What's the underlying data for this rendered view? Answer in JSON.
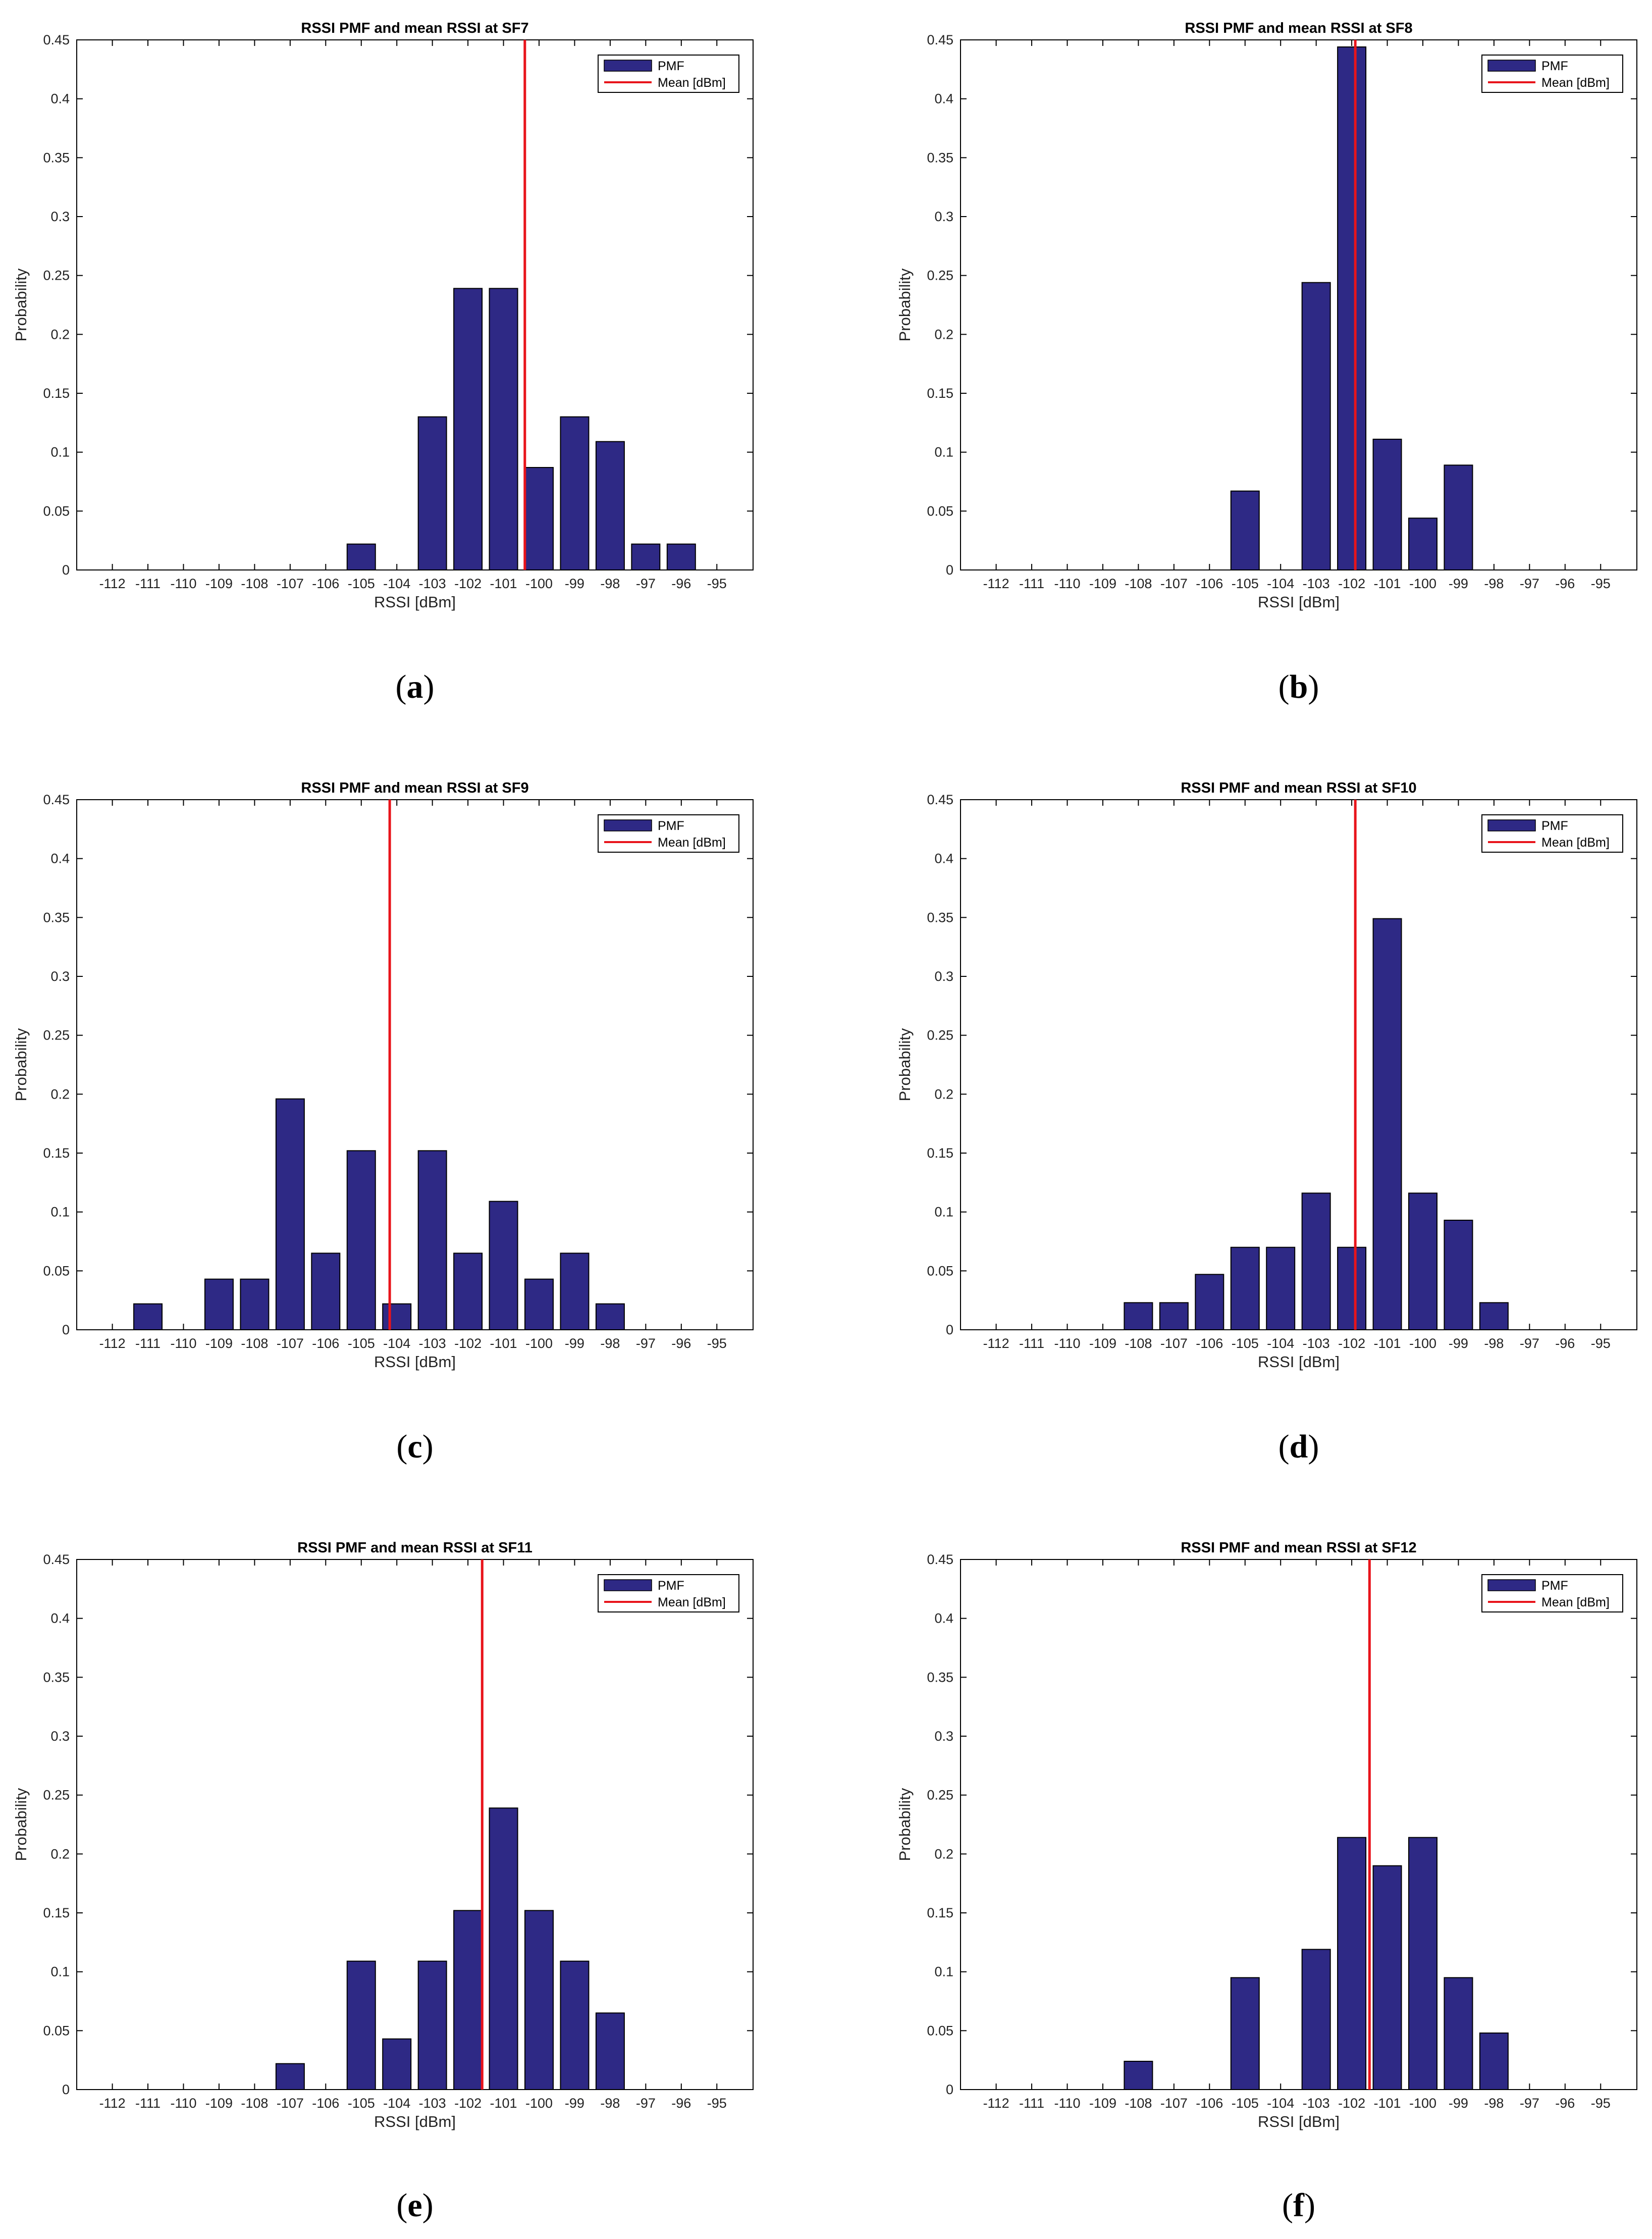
{
  "colors": {
    "bar": "#2e2985",
    "bar_edge": "#000000",
    "mean_line": "#e8141b",
    "axis": "#000000"
  },
  "legend": {
    "pmf_label": "PMF",
    "mean_label": "Mean [dBm]"
  },
  "chart_data": [
    {
      "type": "bar",
      "panel": "a",
      "title": "RSSI PMF and mean RSSI at SF7",
      "xlabel": "RSSI [dBm]",
      "ylabel": "Probability",
      "categories": [
        -112,
        -111,
        -110,
        -109,
        -108,
        -107,
        -106,
        -105,
        -104,
        -103,
        -102,
        -101,
        -100,
        -99,
        -98,
        -97,
        -96,
        -95
      ],
      "values": [
        0,
        0,
        0,
        0,
        0,
        0,
        0,
        0.022,
        0,
        0.13,
        0.239,
        0.239,
        0.087,
        0.13,
        0.109,
        0.022,
        0.022,
        0
      ],
      "mean": -100.4,
      "ylim": [
        0,
        0.45
      ],
      "yticks": [
        "0",
        "0.05",
        "0.1",
        "0.15",
        "0.2",
        "0.25",
        "0.3",
        "0.35",
        "0.4",
        "0.45"
      ],
      "caption": "a"
    },
    {
      "type": "bar",
      "panel": "b",
      "title": "RSSI PMF and mean RSSI at SF8",
      "xlabel": "RSSI [dBm]",
      "ylabel": "Probability",
      "categories": [
        -112,
        -111,
        -110,
        -109,
        -108,
        -107,
        -106,
        -105,
        -104,
        -103,
        -102,
        -101,
        -100,
        -99,
        -98,
        -97,
        -96,
        -95
      ],
      "values": [
        0,
        0,
        0,
        0,
        0,
        0,
        0,
        0.067,
        0,
        0.244,
        0.444,
        0.111,
        0.044,
        0.089,
        0,
        0,
        0,
        0
      ],
      "mean": -101.9,
      "ylim": [
        0,
        0.45
      ],
      "yticks": [
        "0",
        "0.05",
        "0.1",
        "0.15",
        "0.2",
        "0.25",
        "0.3",
        "0.35",
        "0.4",
        "0.45"
      ],
      "caption": "b"
    },
    {
      "type": "bar",
      "panel": "c",
      "title": "RSSI PMF and mean RSSI at SF9",
      "xlabel": "RSSI [dBm]",
      "ylabel": "Probability",
      "categories": [
        -112,
        -111,
        -110,
        -109,
        -108,
        -107,
        -106,
        -105,
        -104,
        -103,
        -102,
        -101,
        -100,
        -99,
        -98,
        -97,
        -96,
        -95
      ],
      "values": [
        0,
        0.022,
        0,
        0.043,
        0.043,
        0.196,
        0.065,
        0.152,
        0.022,
        0.152,
        0.065,
        0.109,
        0.043,
        0.065,
        0.022,
        0,
        0,
        0
      ],
      "mean": -104.2,
      "ylim": [
        0,
        0.45
      ],
      "yticks": [
        "0",
        "0.05",
        "0.1",
        "0.15",
        "0.2",
        "0.25",
        "0.3",
        "0.35",
        "0.4",
        "0.45"
      ],
      "caption": "c"
    },
    {
      "type": "bar",
      "panel": "d",
      "title": "RSSI PMF and mean RSSI at SF10",
      "xlabel": "RSSI [dBm]",
      "ylabel": "Probability",
      "categories": [
        -112,
        -111,
        -110,
        -109,
        -108,
        -107,
        -106,
        -105,
        -104,
        -103,
        -102,
        -101,
        -100,
        -99,
        -98,
        -97,
        -96,
        -95
      ],
      "values": [
        0,
        0,
        0,
        0,
        0.023,
        0.023,
        0.047,
        0.07,
        0.07,
        0.116,
        0.07,
        0.349,
        0.116,
        0.093,
        0.023,
        0,
        0,
        0
      ],
      "mean": -101.9,
      "ylim": [
        0,
        0.45
      ],
      "yticks": [
        "0",
        "0.05",
        "0.1",
        "0.15",
        "0.2",
        "0.25",
        "0.3",
        "0.35",
        "0.4",
        "0.45"
      ],
      "caption": "d"
    },
    {
      "type": "bar",
      "panel": "e",
      "title": "RSSI PMF and mean RSSI at SF11",
      "xlabel": "RSSI [dBm]",
      "ylabel": "Probability",
      "categories": [
        -112,
        -111,
        -110,
        -109,
        -108,
        -107,
        -106,
        -105,
        -104,
        -103,
        -102,
        -101,
        -100,
        -99,
        -98,
        -97,
        -96,
        -95
      ],
      "values": [
        0,
        0,
        0,
        0,
        0,
        0.022,
        0,
        0.109,
        0.043,
        0.109,
        0.152,
        0.239,
        0.152,
        0.109,
        0.065,
        0,
        0,
        0
      ],
      "mean": -101.6,
      "ylim": [
        0,
        0.45
      ],
      "yticks": [
        "0",
        "0.05",
        "0.1",
        "0.15",
        "0.2",
        "0.25",
        "0.3",
        "0.35",
        "0.4",
        "0.45"
      ],
      "caption": "e"
    },
    {
      "type": "bar",
      "panel": "f",
      "title": "RSSI PMF and mean RSSI at SF12",
      "xlabel": "RSSI [dBm]",
      "ylabel": "Probability",
      "categories": [
        -112,
        -111,
        -110,
        -109,
        -108,
        -107,
        -106,
        -105,
        -104,
        -103,
        -102,
        -101,
        -100,
        -99,
        -98,
        -97,
        -96,
        -95
      ],
      "values": [
        0,
        0,
        0,
        0,
        0.024,
        0,
        0,
        0.095,
        0,
        0.119,
        0.214,
        0.19,
        0.214,
        0.095,
        0.048,
        0,
        0,
        0
      ],
      "mean": -101.5,
      "ylim": [
        0,
        0.45
      ],
      "yticks": [
        "0",
        "0.05",
        "0.1",
        "0.15",
        "0.2",
        "0.25",
        "0.3",
        "0.35",
        "0.4",
        "0.45"
      ],
      "caption": "f"
    }
  ]
}
